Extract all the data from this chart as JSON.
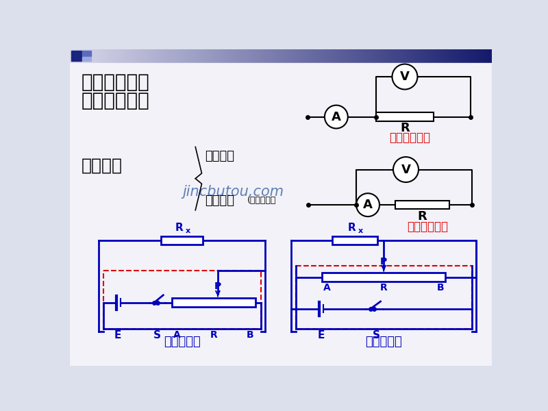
{
  "bg_color": "#dce0ec",
  "header_text1": "一、常见实验",
  "header_text2": "电路的组成：",
  "label_shiyan": "实验电路",
  "label_celiang": "测量电路",
  "label_gongdian": "供电电路",
  "label_kongzhi": "(控制电路）",
  "label_wai": "电流表外接法",
  "label_nei": "电流表内接法",
  "label_xianliu": "限流式接法",
  "label_fanya": "分压式接法",
  "watermark": "jincbutou.com",
  "blue": "#0000bb",
  "red": "#dd0000",
  "black": "#000000"
}
